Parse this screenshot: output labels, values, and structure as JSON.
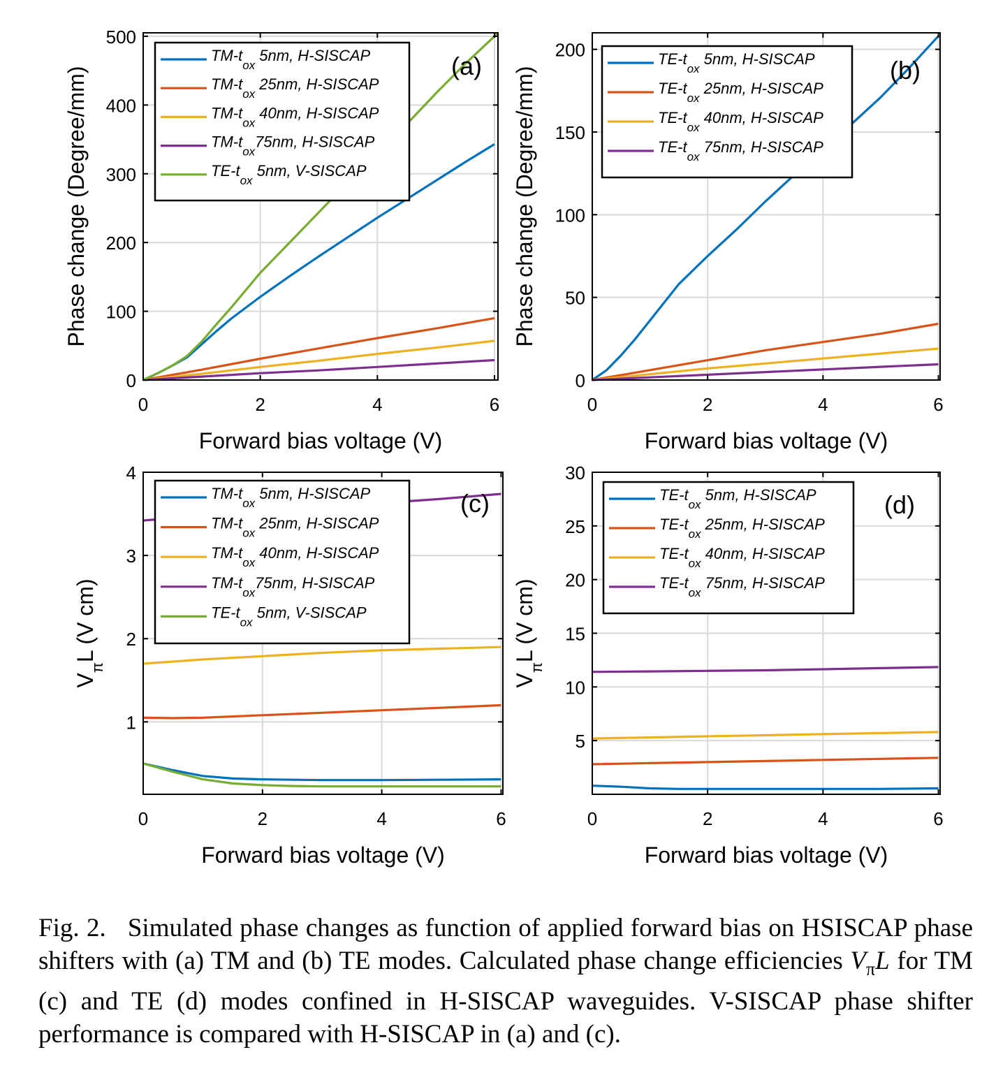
{
  "caption": {
    "lead": "Fig. 2.",
    "text_1": "Simulated phase changes as function of applied forward bias on HSISCAP phase shifters with (a) TM and (b) TE modes. Calculated phase change efficiencies ",
    "math_main": "V",
    "math_sub": "π",
    "math_tail": "L",
    "text_2": " for TM (c) and TE (d) modes confined in H-SISCAP waveguides. V-SISCAP phase shifter performance is compared with H-SISCAP in (a) and (c)."
  },
  "colors": {
    "blue": "#0072BD",
    "orange": "#D95319",
    "yellow": "#EDB120",
    "purple": "#7E2F8E",
    "green": "#77AC30",
    "grid": "#d9d9d9"
  },
  "chart_data": [
    {
      "panel": "(a)",
      "type": "line",
      "xlabel": "Forward bias voltage (V)",
      "ylabel": "Phase change (Degree/mm)",
      "xlim": [
        0,
        6.06
      ],
      "ylim": [
        0,
        505
      ],
      "xticks": [
        0,
        2,
        4,
        6
      ],
      "yticks": [
        0,
        100,
        200,
        300,
        400,
        500
      ],
      "grid": true,
      "legend_position": "top-left",
      "series": [
        {
          "name": "TM-t|ox| 5nm, H-SISCAP",
          "color": "blue",
          "x": [
            0,
            0.25,
            0.5,
            0.75,
            1,
            1.25,
            1.5,
            2,
            2.5,
            3,
            3.5,
            4,
            4.5,
            5,
            5.5,
            6
          ],
          "y": [
            0,
            10,
            21,
            33,
            52,
            71,
            89,
            121,
            151,
            180,
            208,
            236,
            263,
            290,
            317,
            343
          ]
        },
        {
          "name": "TM-t|ox| 25nm, H-SISCAP",
          "color": "orange",
          "x": [
            0,
            1,
            2,
            3,
            4,
            5,
            6
          ],
          "y": [
            0,
            15,
            31,
            46,
            61,
            75,
            90
          ]
        },
        {
          "name": "TM-t|ox| 40nm, H-SISCAP",
          "color": "yellow",
          "x": [
            0,
            1,
            2,
            3,
            4,
            5,
            6
          ],
          "y": [
            0,
            9,
            19,
            28,
            38,
            47,
            57
          ]
        },
        {
          "name": "TM-t|ox|75nm, H-SISCAP",
          "color": "purple",
          "x": [
            0,
            1,
            2,
            3,
            4,
            5,
            6
          ],
          "y": [
            0,
            5,
            10,
            14,
            19,
            24,
            29
          ]
        },
        {
          "name": "TE-t|ox| 5nm, V-SISCAP",
          "color": "green",
          "x": [
            0,
            0.25,
            0.5,
            0.75,
            1,
            1.25,
            1.5,
            2,
            2.5,
            3,
            3.5,
            4,
            4.5,
            5,
            5.5,
            6,
            6.06
          ],
          "y": [
            0,
            10,
            21,
            35,
            56,
            81,
            105,
            156,
            200,
            244,
            288,
            330,
            372,
            417,
            460,
            500,
            505
          ]
        }
      ]
    },
    {
      "panel": "(b)",
      "type": "line",
      "xlabel": "Forward bias voltage (V)",
      "ylabel": "Phase change (Degree/mm)",
      "xlim": [
        0,
        6.03
      ],
      "ylim": [
        0,
        210
      ],
      "xticks": [
        0,
        2,
        4,
        6
      ],
      "yticks": [
        0,
        50,
        100,
        150,
        200
      ],
      "grid": true,
      "legend_position": "top-left",
      "series": [
        {
          "name": "TE-t|ox| 5nm, H-SISCAP",
          "color": "blue",
          "x": [
            0,
            0.25,
            0.5,
            0.75,
            1,
            1.25,
            1.5,
            2,
            2.5,
            3,
            3.5,
            4,
            4.5,
            5,
            5.5,
            6
          ],
          "y": [
            0,
            6,
            15,
            25,
            36,
            47,
            58,
            75,
            91,
            108,
            124,
            139,
            155,
            171,
            189,
            208
          ]
        },
        {
          "name": "TE-t|ox| 25nm, H-SISCAP",
          "color": "orange",
          "x": [
            0,
            1,
            2,
            3,
            4,
            5,
            6
          ],
          "y": [
            0,
            6,
            12,
            18,
            23,
            28,
            34
          ]
        },
        {
          "name": "TE-t|ox| 40nm, H-SISCAP",
          "color": "yellow",
          "x": [
            0,
            1,
            2,
            3,
            4,
            5,
            6
          ],
          "y": [
            0,
            3.5,
            7,
            10,
            13,
            16,
            19
          ]
        },
        {
          "name": "TE-t|ox| 75nm, H-SISCAP",
          "color": "purple",
          "x": [
            0,
            1,
            2,
            3,
            4,
            5,
            6
          ],
          "y": [
            0,
            1.6,
            3.2,
            4.8,
            6.4,
            8,
            9.5
          ]
        }
      ]
    },
    {
      "panel": "(c)",
      "type": "line",
      "xlabel": "Forward bias voltage (V)",
      "ylabel": "V|π|L (V cm)",
      "xlim": [
        0,
        6.03
      ],
      "ylim": [
        0.13,
        4
      ],
      "xticks": [
        0,
        2,
        4,
        6
      ],
      "yticks": [
        1,
        2,
        3,
        4
      ],
      "grid": true,
      "legend_position": "top-left",
      "series": [
        {
          "name": "TM-t|ox| 5nm, H-SISCAP",
          "color": "blue",
          "x": [
            0,
            0.5,
            1,
            1.5,
            2,
            2.5,
            3,
            3.5,
            4,
            5,
            6
          ],
          "y": [
            0.5,
            0.42,
            0.35,
            0.32,
            0.31,
            0.305,
            0.3,
            0.3,
            0.3,
            0.305,
            0.31
          ]
        },
        {
          "name": "TM-t|ox| 25nm, H-SISCAP",
          "color": "orange",
          "x": [
            0,
            0.5,
            1,
            2,
            3,
            4,
            5,
            6
          ],
          "y": [
            1.05,
            1.045,
            1.05,
            1.08,
            1.11,
            1.14,
            1.17,
            1.2
          ]
        },
        {
          "name": "TM-t|ox| 40nm, H-SISCAP",
          "color": "yellow",
          "x": [
            0,
            1,
            2,
            3,
            4,
            5,
            6
          ],
          "y": [
            1.7,
            1.75,
            1.79,
            1.83,
            1.86,
            1.88,
            1.9
          ]
        },
        {
          "name": "TM-t|ox|75nm, H-SISCAP",
          "color": "purple",
          "x": [
            0,
            1,
            2,
            3,
            4,
            5,
            6
          ],
          "y": [
            3.42,
            3.48,
            3.53,
            3.58,
            3.63,
            3.68,
            3.74
          ]
        },
        {
          "name": "TE-t|ox| 5nm, V-SISCAP",
          "color": "green",
          "x": [
            0,
            0.5,
            1,
            1.5,
            2,
            2.5,
            3,
            4,
            5,
            6
          ],
          "y": [
            0.5,
            0.4,
            0.31,
            0.26,
            0.24,
            0.23,
            0.225,
            0.225,
            0.225,
            0.225
          ]
        }
      ]
    },
    {
      "panel": "(d)",
      "type": "line",
      "xlabel": "Forward bias voltage (V)",
      "ylabel": "V|π|L (V cm)",
      "xlim": [
        0,
        6.03
      ],
      "ylim": [
        0,
        30
      ],
      "xticks": [
        0,
        2,
        4,
        6
      ],
      "yticks": [
        5,
        10,
        15,
        20,
        25,
        30
      ],
      "grid": true,
      "legend_position": "top-left",
      "series": [
        {
          "name": "TE-t|ox| 5nm, H-SISCAP",
          "color": "blue",
          "x": [
            0,
            0.5,
            1,
            1.5,
            2,
            3,
            4,
            5,
            6
          ],
          "y": [
            0.8,
            0.7,
            0.55,
            0.5,
            0.5,
            0.5,
            0.5,
            0.5,
            0.55
          ]
        },
        {
          "name": "TE-t|ox| 25nm, H-SISCAP",
          "color": "orange",
          "x": [
            0,
            1,
            2,
            3,
            4,
            5,
            6
          ],
          "y": [
            2.8,
            2.9,
            3.0,
            3.1,
            3.2,
            3.3,
            3.4
          ]
        },
        {
          "name": "TE-t|ox| 40nm, H-SISCAP",
          "color": "yellow",
          "x": [
            0,
            1,
            2,
            3,
            4,
            5,
            6
          ],
          "y": [
            5.2,
            5.3,
            5.4,
            5.5,
            5.6,
            5.7,
            5.8
          ]
        },
        {
          "name": "TE-t|ox| 75nm, H-SISCAP",
          "color": "purple",
          "x": [
            0,
            1,
            2,
            3,
            4,
            5,
            6
          ],
          "y": [
            11.4,
            11.45,
            11.5,
            11.55,
            11.65,
            11.75,
            11.85
          ]
        }
      ]
    }
  ]
}
